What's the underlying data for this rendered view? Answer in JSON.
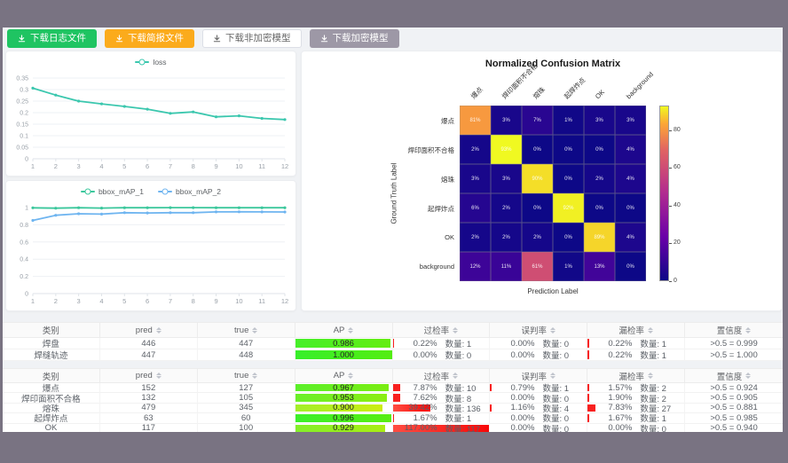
{
  "frame": {
    "bar_color": "#797382",
    "content_bg": "#f0f2f5"
  },
  "toolbar": {
    "buttons": [
      {
        "label": "下载日志文件",
        "variant": "green"
      },
      {
        "label": "下载简报文件",
        "variant": "orange"
      },
      {
        "label": "下载非加密模型",
        "variant": "white"
      },
      {
        "label": "下载加密模型",
        "variant": "gray"
      }
    ]
  },
  "chart_data": [
    {
      "id": "loss",
      "type": "line",
      "title": "",
      "xlabel": "",
      "ylabel": "",
      "x": [
        1,
        2,
        3,
        4,
        5,
        6,
        7,
        8,
        9,
        10,
        11,
        12
      ],
      "ylim": [
        0,
        0.35
      ],
      "yticks": [
        0,
        0.05,
        0.1,
        0.15,
        0.2,
        0.25,
        0.3,
        0.35
      ],
      "legend_position": "top",
      "grid": true,
      "series": [
        {
          "name": "loss",
          "color": "#3bc7ae",
          "values": [
            0.306,
            0.276,
            0.25,
            0.238,
            0.227,
            0.215,
            0.197,
            0.203,
            0.182,
            0.186,
            0.175,
            0.17
          ]
        }
      ]
    },
    {
      "id": "bbox_map",
      "type": "line",
      "title": "",
      "xlabel": "",
      "ylabel": "",
      "x": [
        1,
        2,
        3,
        4,
        5,
        6,
        7,
        8,
        9,
        10,
        11,
        12
      ],
      "ylim": [
        0,
        1
      ],
      "yticks": [
        0,
        0.2,
        0.4,
        0.6,
        0.8,
        1
      ],
      "legend_position": "top",
      "grid": true,
      "series": [
        {
          "name": "bbox_mAP_1",
          "color": "#3bc79c",
          "values": [
            0.997,
            0.993,
            0.998,
            0.994,
            0.998,
            0.998,
            0.999,
            0.999,
            0.998,
            0.998,
            0.998,
            0.998
          ]
        },
        {
          "name": "bbox_mAP_2",
          "color": "#6fb5f0",
          "values": [
            0.851,
            0.91,
            0.928,
            0.924,
            0.94,
            0.937,
            0.94,
            0.94,
            0.949,
            0.951,
            0.95,
            0.948
          ]
        }
      ]
    },
    {
      "id": "confusion_matrix",
      "type": "heatmap",
      "title": "Normalized Confusion Matrix",
      "xlabel": "Prediction Label",
      "ylabel": "Ground Truth Label",
      "labels": [
        "爆点",
        "焊印面积不合格",
        "熔珠",
        "起焊炸点",
        "OK",
        "background"
      ],
      "matrix": [
        [
          81,
          3,
          7,
          1,
          3,
          3
        ],
        [
          2,
          93,
          0,
          0,
          0,
          4
        ],
        [
          3,
          3,
          90,
          0,
          2,
          4
        ],
        [
          6,
          2,
          0,
          92,
          0,
          0
        ],
        [
          2,
          2,
          2,
          0,
          89,
          4
        ],
        [
          12,
          11,
          61,
          1,
          13,
          0
        ]
      ],
      "value_suffix": "%",
      "vmax": 93,
      "colormap": "plasma",
      "colorbar_ticks": [
        80,
        60,
        40,
        20,
        0
      ]
    }
  ],
  "tables": [
    {
      "headers": [
        "类别",
        "pred",
        "true",
        "AP",
        "过检率",
        "误判率",
        "漏检率",
        "置信度"
      ],
      "sortable": [
        false,
        true,
        true,
        true,
        true,
        true,
        true,
        true
      ],
      "rows": [
        {
          "class": "焊盘",
          "pred": "446",
          "true": "447",
          "ap": "0.986",
          "overkill": {
            "pct": "0.22%",
            "count": "数量: 1"
          },
          "misjudge": {
            "pct": "0.00%",
            "count": "数量: 0"
          },
          "miss": {
            "pct": "0.22%",
            "count": "数量: 1"
          },
          "confidence": ">0.5 = 0.999"
        },
        {
          "class": "焊缝轨迹",
          "pred": "447",
          "true": "448",
          "ap": "1.000",
          "overkill": {
            "pct": "0.00%",
            "count": "数量: 0"
          },
          "misjudge": {
            "pct": "0.00%",
            "count": "数量: 0"
          },
          "miss": {
            "pct": "0.22%",
            "count": "数量: 1"
          },
          "confidence": ">0.5 = 1.000"
        }
      ]
    },
    {
      "headers": [
        "类别",
        "pred",
        "true",
        "AP",
        "过检率",
        "误判率",
        "漏检率",
        "置信度"
      ],
      "sortable": [
        false,
        true,
        true,
        true,
        true,
        true,
        true,
        true
      ],
      "rows": [
        {
          "class": "爆点",
          "pred": "152",
          "true": "127",
          "ap": "0.967",
          "overkill": {
            "pct": "7.87%",
            "count": "数量: 10"
          },
          "misjudge": {
            "pct": "0.79%",
            "count": "数量: 1"
          },
          "miss": {
            "pct": "1.57%",
            "count": "数量: 2"
          },
          "confidence": ">0.5 = 0.924"
        },
        {
          "class": "焊印面积不合格",
          "pred": "132",
          "true": "105",
          "ap": "0.953",
          "overkill": {
            "pct": "7.62%",
            "count": "数量: 8"
          },
          "misjudge": {
            "pct": "0.00%",
            "count": "数量: 0"
          },
          "miss": {
            "pct": "1.90%",
            "count": "数量: 2"
          },
          "confidence": ">0.5 = 0.905"
        },
        {
          "class": "熔珠",
          "pred": "479",
          "true": "345",
          "ap": "0.900",
          "overkill": {
            "pct": "39.42%",
            "count": "数量: 136"
          },
          "misjudge": {
            "pct": "1.16%",
            "count": "数量: 4"
          },
          "miss": {
            "pct": "7.83%",
            "count": "数量: 27"
          },
          "confidence": ">0.5 = 0.881"
        },
        {
          "class": "起焊炸点",
          "pred": "63",
          "true": "60",
          "ap": "0.996",
          "overkill": {
            "pct": "1.67%",
            "count": "数量: 1"
          },
          "misjudge": {
            "pct": "0.00%",
            "count": "数量: 0"
          },
          "miss": {
            "pct": "1.67%",
            "count": "数量: 1"
          },
          "confidence": ">0.5 = 0.985"
        },
        {
          "class": "OK",
          "pred": "117",
          "true": "100",
          "ap": "0.929",
          "overkill": {
            "pct": "117.00%",
            "count": "数量: 117"
          },
          "misjudge": {
            "pct": "0.00%",
            "count": "数量: 0"
          },
          "miss": {
            "pct": "0.00%",
            "count": "数量: 0"
          },
          "confidence": ">0.5 = 0.940"
        }
      ]
    }
  ],
  "colors": {
    "bar_red": "#f81d1d",
    "ap_green": "#2de23c"
  }
}
